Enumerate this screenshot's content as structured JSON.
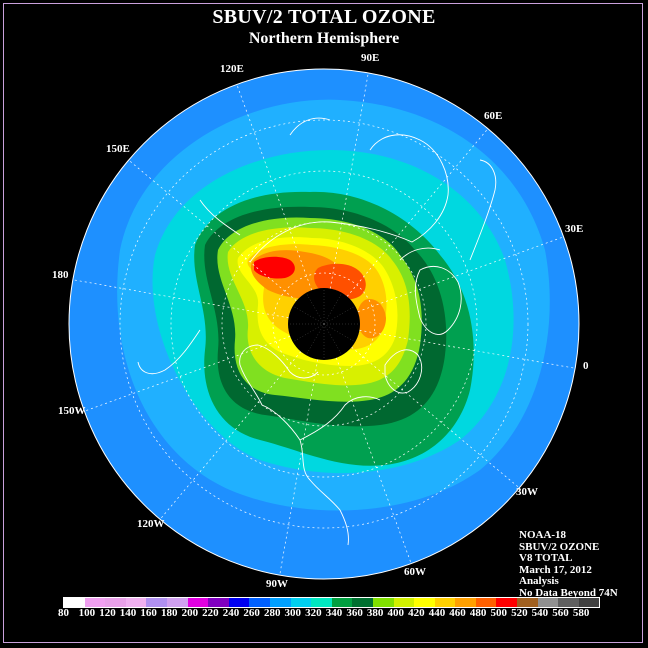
{
  "header": {
    "title": "SBUV/2 TOTAL OZONE",
    "subtitle": "Northern Hemisphere"
  },
  "longitude_labels": [
    {
      "key": "lon_90e",
      "text": "90E"
    },
    {
      "key": "lon_60e",
      "text": "60E"
    },
    {
      "key": "lon_30e",
      "text": "30E"
    },
    {
      "key": "lon_0",
      "text": "0"
    },
    {
      "key": "lon_30w",
      "text": "30W"
    },
    {
      "key": "lon_60w",
      "text": "60W"
    },
    {
      "key": "lon_90w",
      "text": "90W"
    },
    {
      "key": "lon_120w",
      "text": "120W"
    },
    {
      "key": "lon_150w",
      "text": "150W"
    },
    {
      "key": "lon_180",
      "text": "180"
    },
    {
      "key": "lon_150e",
      "text": "150E"
    },
    {
      "key": "lon_120e",
      "text": "120E"
    }
  ],
  "info_block": {
    "satellite": "NOAA-18",
    "product": "SBUV/2 OZONE",
    "version": "V8 TOTAL",
    "date": "March 17, 2012",
    "type": "Analysis",
    "note": "No Data Beyond 74N"
  },
  "color_scale": {
    "labels": [
      "80",
      "100",
      "120",
      "140",
      "160",
      "180",
      "200",
      "220",
      "240",
      "260",
      "280",
      "300",
      "320",
      "340",
      "360",
      "380",
      "400",
      "420",
      "440",
      "460",
      "480",
      "500",
      "520",
      "540",
      "560",
      "580"
    ],
    "colors": [
      "#ffffff",
      "#f0a0f0",
      "#e8a0e8",
      "#f0b0f0",
      "#b090f0",
      "#d0a0f0",
      "#e000e0",
      "#8000c0",
      "#0000f0",
      "#0060ff",
      "#00a0ff",
      "#00d0f0",
      "#00e8c0",
      "#00a040",
      "#007030",
      "#80e000",
      "#d0f000",
      "#ffff00",
      "#ffd000",
      "#ffa000",
      "#ff6000",
      "#ff0000",
      "#a06020",
      "#909090",
      "#606060",
      "#404040"
    ]
  },
  "map_colors": {
    "background": "#000000",
    "ocean_low": "#1e90ff",
    "band_290": "#20b0ff",
    "band_310": "#00d8e0",
    "band_340": "#00a050",
    "band_360": "#006830",
    "band_380": "#80e020",
    "band_400": "#d8f000",
    "band_420": "#ffff00",
    "band_440": "#ffd000",
    "band_460": "#ff9000",
    "band_480": "#ff5000",
    "band_500": "#ff0000",
    "polar_cap": "#000000",
    "coastline": "#ffffff",
    "grid": "#ffffff"
  }
}
